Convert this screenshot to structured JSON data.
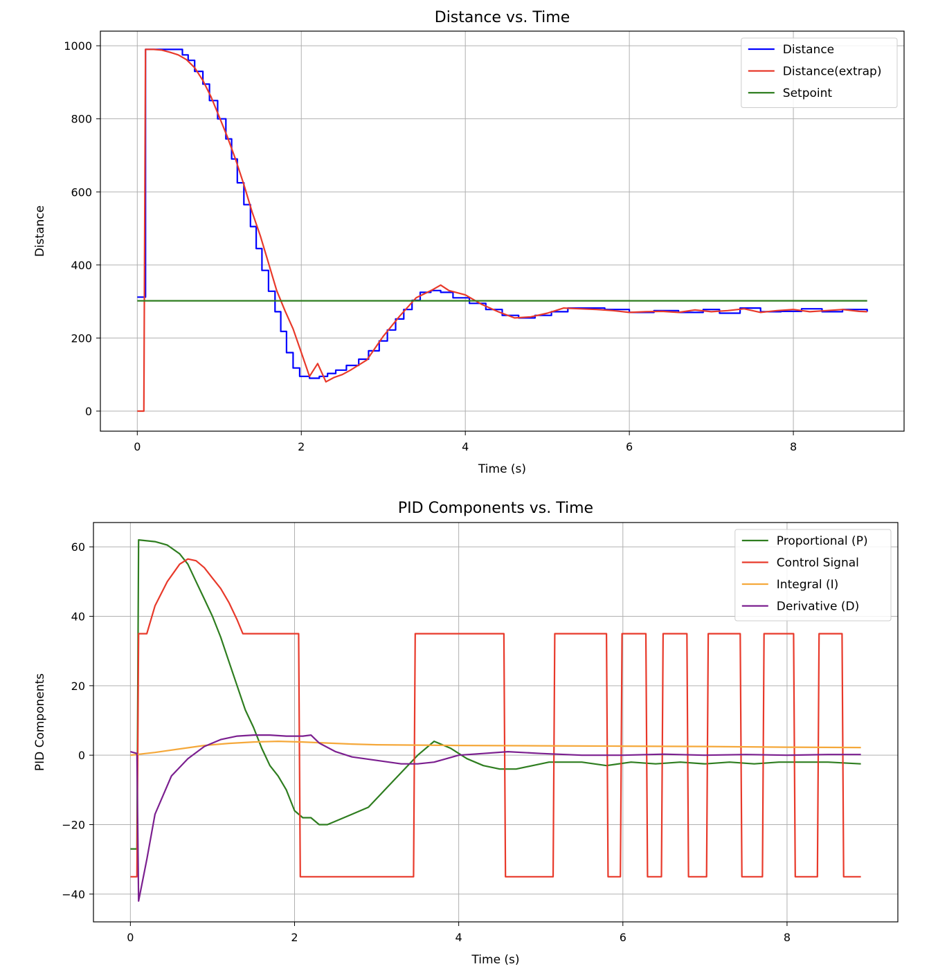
{
  "chart_data": [
    {
      "type": "line",
      "title": "Distance vs. Time",
      "xlabel": "Time (s)",
      "ylabel": "Distance",
      "xlim": [
        -0.45,
        9.35
      ],
      "ylim": [
        -55,
        1040
      ],
      "xticks": [
        0,
        2,
        4,
        6,
        8
      ],
      "yticks": [
        0,
        200,
        400,
        600,
        800,
        1000
      ],
      "grid": true,
      "legend_position": "top-right",
      "series": [
        {
          "name": "Distance",
          "color": "#0000ff",
          "step": true,
          "x": [
            0,
            0.08,
            0.1,
            0.55,
            0.62,
            0.7,
            0.8,
            0.88,
            0.98,
            1.08,
            1.15,
            1.22,
            1.3,
            1.38,
            1.45,
            1.52,
            1.6,
            1.68,
            1.75,
            1.82,
            1.9,
            1.98,
            2.1,
            2.22,
            2.32,
            2.42,
            2.55,
            2.7,
            2.82,
            2.95,
            3.05,
            3.15,
            3.25,
            3.35,
            3.45,
            3.58,
            3.7,
            3.85,
            4.05,
            4.25,
            4.45,
            4.65,
            4.85,
            5.05,
            5.25,
            5.45,
            5.7,
            6.0,
            6.3,
            6.6,
            6.9,
            7.1,
            7.35,
            7.6,
            7.85,
            8.1,
            8.35,
            8.6,
            8.9
          ],
          "y": [
            312,
            312,
            990,
            975,
            960,
            930,
            895,
            850,
            800,
            745,
            690,
            625,
            565,
            505,
            445,
            385,
            328,
            272,
            218,
            160,
            118,
            95,
            90,
            95,
            103,
            112,
            125,
            142,
            165,
            192,
            222,
            252,
            278,
            303,
            325,
            330,
            325,
            310,
            295,
            278,
            262,
            255,
            262,
            272,
            282,
            282,
            278,
            270,
            275,
            270,
            278,
            268,
            282,
            272,
            273,
            280,
            272,
            278,
            272
          ]
        },
        {
          "name": "Distance(extrap)",
          "color": "#e8392a",
          "step": false,
          "x": [
            0,
            0.08,
            0.1,
            0.2,
            0.3,
            0.4,
            0.5,
            0.6,
            0.7,
            0.8,
            0.9,
            1.0,
            1.1,
            1.2,
            1.3,
            1.4,
            1.5,
            1.6,
            1.7,
            1.8,
            1.9,
            2.0,
            2.1,
            2.2,
            2.3,
            2.4,
            2.5,
            2.6,
            2.8,
            3.0,
            3.2,
            3.4,
            3.6,
            3.7,
            3.8,
            4.0,
            4.2,
            4.4,
            4.6,
            4.8,
            5.0,
            5.2,
            5.4,
            5.6,
            5.8,
            6.0,
            6.2,
            6.4,
            6.6,
            6.8,
            7.0,
            7.2,
            7.4,
            7.6,
            7.8,
            8.0,
            8.2,
            8.4,
            8.6,
            8.8,
            8.9
          ],
          "y": [
            0,
            0,
            990,
            990,
            988,
            982,
            975,
            962,
            940,
            905,
            860,
            805,
            750,
            688,
            620,
            545,
            480,
            405,
            330,
            275,
            225,
            160,
            95,
            130,
            80,
            92,
            100,
            112,
            140,
            205,
            260,
            310,
            332,
            345,
            330,
            318,
            292,
            272,
            255,
            258,
            268,
            282,
            280,
            278,
            275,
            270,
            272,
            273,
            270,
            277,
            272,
            275,
            280,
            270,
            275,
            278,
            272,
            275,
            278,
            273,
            272
          ]
        },
        {
          "name": "Setpoint",
          "color": "#2e7d1f",
          "step": false,
          "x": [
            0,
            8.9
          ],
          "y": [
            302,
            302
          ]
        }
      ]
    },
    {
      "type": "line",
      "title": "PID Components vs. Time",
      "xlabel": "Time (s)",
      "ylabel": "PID Components",
      "xlim": [
        -0.45,
        9.35
      ],
      "ylim": [
        -48,
        67
      ],
      "xticks": [
        0,
        2,
        4,
        6,
        8
      ],
      "yticks": [
        -40,
        -20,
        0,
        20,
        40,
        60
      ],
      "grid": true,
      "legend_position": "top-right",
      "series": [
        {
          "name": "Proportional (P)",
          "color": "#2e7d1f",
          "step": false,
          "x": [
            0,
            0.08,
            0.1,
            0.3,
            0.45,
            0.6,
            0.7,
            0.8,
            0.9,
            1.0,
            1.1,
            1.2,
            1.3,
            1.4,
            1.5,
            1.6,
            1.7,
            1.8,
            1.9,
            2.0,
            2.1,
            2.2,
            2.3,
            2.4,
            2.5,
            2.7,
            2.9,
            3.1,
            3.3,
            3.5,
            3.7,
            3.9,
            4.1,
            4.3,
            4.5,
            4.7,
            4.9,
            5.1,
            5.3,
            5.5,
            5.8,
            6.1,
            6.4,
            6.7,
            7.0,
            7.3,
            7.6,
            7.9,
            8.2,
            8.5,
            8.9
          ],
          "y": [
            -27,
            -27,
            62,
            61.5,
            60.5,
            58,
            55,
            50,
            45,
            40,
            34,
            27,
            20,
            13,
            8,
            2,
            -3,
            -6,
            -10,
            -16,
            -18,
            -18,
            -20,
            -20,
            -19,
            -17,
            -15,
            -10,
            -5,
            0,
            4,
            2,
            -1,
            -3,
            -4,
            -4,
            -3,
            -2,
            -2,
            -2,
            -3,
            -2,
            -2.5,
            -2,
            -2.5,
            -2,
            -2.5,
            -2,
            -2,
            -2,
            -2.5
          ]
        },
        {
          "name": "Control Signal",
          "color": "#e8392a",
          "step": false,
          "x": [
            0,
            0.08,
            0.1,
            0.2,
            0.3,
            0.45,
            0.6,
            0.7,
            0.8,
            0.9,
            1.0,
            1.1,
            1.2,
            1.3,
            1.37,
            2.05,
            2.07,
            3.45,
            3.47,
            4.55,
            4.57,
            5.15,
            5.17,
            5.8,
            5.82,
            5.97,
            5.99,
            6.28,
            6.3,
            6.47,
            6.49,
            6.78,
            6.8,
            7.02,
            7.04,
            7.43,
            7.45,
            7.7,
            7.72,
            8.08,
            8.1,
            8.37,
            8.39,
            8.67,
            8.69,
            8.9
          ],
          "y": [
            -35,
            -35,
            35,
            35,
            43,
            50,
            55,
            56.5,
            56,
            54,
            51,
            48,
            44,
            39,
            35,
            35,
            -35,
            -35,
            35,
            35,
            -35,
            -35,
            35,
            35,
            -35,
            -35,
            35,
            35,
            -35,
            -35,
            35,
            35,
            -35,
            -35,
            35,
            35,
            -35,
            -35,
            35,
            35,
            -35,
            -35,
            35,
            35,
            -35,
            -35
          ]
        },
        {
          "name": "Integral (I)",
          "color": "#f5a83a",
          "step": false,
          "x": [
            0,
            0.3,
            0.6,
            0.9,
            1.2,
            1.5,
            1.8,
            2.1,
            2.4,
            2.7,
            3.0,
            3.5,
            4.0,
            5.0,
            6.0,
            7.0,
            8.0,
            8.9
          ],
          "y": [
            0,
            0.8,
            1.8,
            2.8,
            3.4,
            3.8,
            4.0,
            3.8,
            3.5,
            3.2,
            3.0,
            2.9,
            2.8,
            2.7,
            2.6,
            2.5,
            2.3,
            2.2
          ]
        },
        {
          "name": "Derivative (D)",
          "color": "#7b1f8f",
          "step": false,
          "x": [
            0,
            0.08,
            0.1,
            0.2,
            0.3,
            0.5,
            0.7,
            0.9,
            1.1,
            1.3,
            1.5,
            1.7,
            1.9,
            2.1,
            2.2,
            2.3,
            2.5,
            2.7,
            3.0,
            3.3,
            3.5,
            3.7,
            4.0,
            4.3,
            4.6,
            5.0,
            5.5,
            6.0,
            6.5,
            7.0,
            7.5,
            8.0,
            8.5,
            8.9
          ],
          "y": [
            1,
            0.5,
            -42,
            -30,
            -17,
            -6,
            -1,
            2.5,
            4.5,
            5.5,
            5.8,
            5.8,
            5.5,
            5.5,
            5.8,
            3.5,
            1,
            -0.5,
            -1.5,
            -2.5,
            -2.5,
            -2,
            0,
            0.5,
            1,
            0.5,
            0,
            0,
            0.3,
            0,
            0.2,
            0,
            0.2,
            0.2
          ]
        }
      ]
    }
  ]
}
